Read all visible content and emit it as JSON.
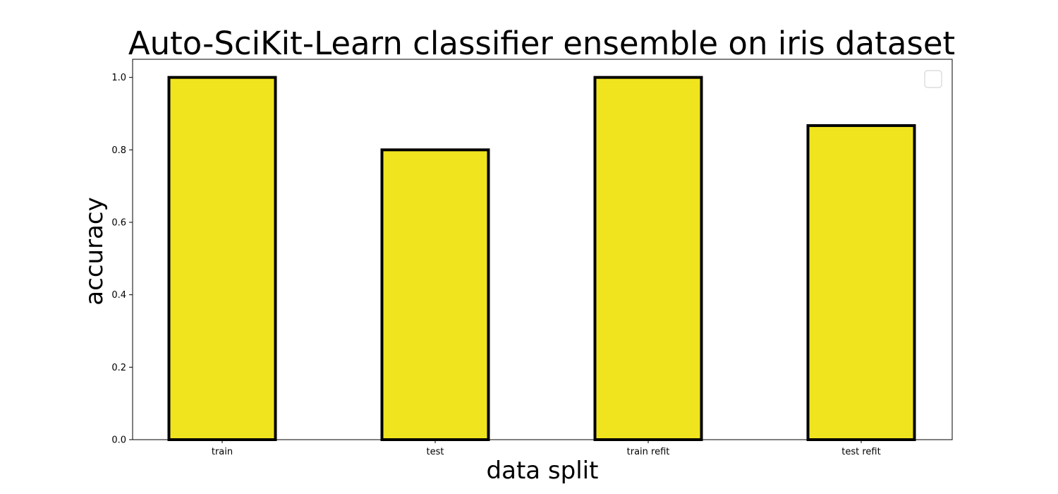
{
  "chart_data": {
    "type": "bar",
    "title": "Auto-SciKit-Learn classifier ensemble on iris dataset",
    "xlabel": "data split",
    "ylabel": "accuracy",
    "categories": [
      "train",
      "test",
      "train refit",
      "test refit"
    ],
    "values": [
      1.0,
      0.8,
      1.0,
      0.867
    ],
    "ylim": [
      0.0,
      1.05
    ],
    "yticks": [
      0.0,
      0.2,
      0.4,
      0.6,
      0.8,
      1.0
    ],
    "ytick_labels": [
      "0.0",
      "0.2",
      "0.4",
      "0.6",
      "0.8",
      "1.0"
    ],
    "grid": false,
    "legend": {
      "placement": "top-right",
      "entries": []
    },
    "colors": {
      "bar_fill": "#f0e41f",
      "bar_edge": "#000000"
    }
  }
}
